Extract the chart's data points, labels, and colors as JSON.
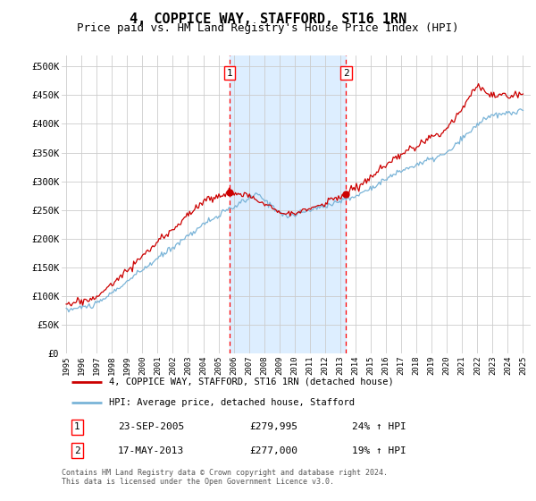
{
  "title": "4, COPPICE WAY, STAFFORD, ST16 1RN",
  "subtitle": "Price paid vs. HM Land Registry's House Price Index (HPI)",
  "title_fontsize": 11,
  "subtitle_fontsize": 9,
  "yticks": [
    0,
    50000,
    100000,
    150000,
    200000,
    250000,
    300000,
    350000,
    400000,
    450000,
    500000
  ],
  "ylim": [
    0,
    520000
  ],
  "xlim_start": 1994.7,
  "xlim_end": 2025.5,
  "bg_color": "#ffffff",
  "shade_color": "#ddeeff",
  "grid_color": "#cccccc",
  "hpi_color": "#7ab4d8",
  "price_color": "#cc0000",
  "marker1_date": 2005.73,
  "marker1_price": 279995,
  "marker1_label": "1",
  "marker1_text": "23-SEP-2005",
  "marker1_price_str": "£279,995",
  "marker1_pct": "24% ↑ HPI",
  "marker2_date": 2013.38,
  "marker2_price": 277000,
  "marker2_label": "2",
  "marker2_text": "17-MAY-2013",
  "marker2_price_str": "£277,000",
  "marker2_pct": "19% ↑ HPI",
  "legend_line1": "4, COPPICE WAY, STAFFORD, ST16 1RN (detached house)",
  "legend_line2": "HPI: Average price, detached house, Stafford",
  "footer": "Contains HM Land Registry data © Crown copyright and database right 2024.\nThis data is licensed under the Open Government Licence v3.0."
}
